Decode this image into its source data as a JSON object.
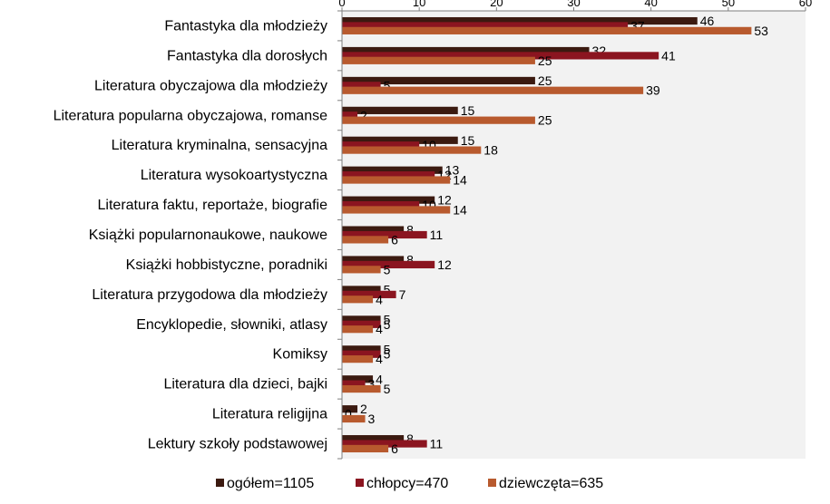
{
  "chart_data": {
    "type": "bar",
    "orientation": "horizontal",
    "title": "",
    "xlabel": "",
    "ylabel": "",
    "xlim": [
      0,
      60
    ],
    "x_ticks": [
      0,
      10,
      20,
      30,
      40,
      50,
      60
    ],
    "axis_position": "top",
    "grid": false,
    "legend_position": "bottom",
    "categories": [
      "Fantastyka dla młodzieży",
      "Fantastyka dla dorosłych",
      "Literatura obyczajowa dla młodzieży",
      "Literatura popularna obyczajowa, romanse",
      "Literatura kryminalna, sensacyjna",
      "Literatura wysokoartystyczna",
      "Literatura faktu, reportaże, biografie",
      "Książki popularnonaukowe, naukowe",
      "Książki hobbistyczne, poradniki",
      "Literatura przygodowa dla młodzieży",
      "Encyklopedie, słowniki, atlasy",
      "Komiksy",
      "Literatura dla dzieci, bajki",
      "Literatura religijna",
      "Lektury szkoły podstawowej"
    ],
    "series": [
      {
        "name": "ogółem=1105",
        "color": "#3b1a10",
        "values": [
          46,
          32,
          25,
          15,
          15,
          13,
          12,
          8,
          8,
          5,
          5,
          5,
          4,
          2,
          8
        ]
      },
      {
        "name": "chłopcy=470",
        "color": "#8b1520",
        "values": [
          37,
          41,
          5,
          2,
          10,
          12,
          10,
          11,
          12,
          7,
          5,
          5,
          3,
          0,
          11
        ]
      },
      {
        "name": "dziewczęta=635",
        "color": "#b85a2e",
        "values": [
          53,
          25,
          39,
          25,
          18,
          14,
          14,
          6,
          5,
          4,
          4,
          4,
          5,
          3,
          6
        ]
      }
    ],
    "plot_background": "#f2f2f2"
  }
}
